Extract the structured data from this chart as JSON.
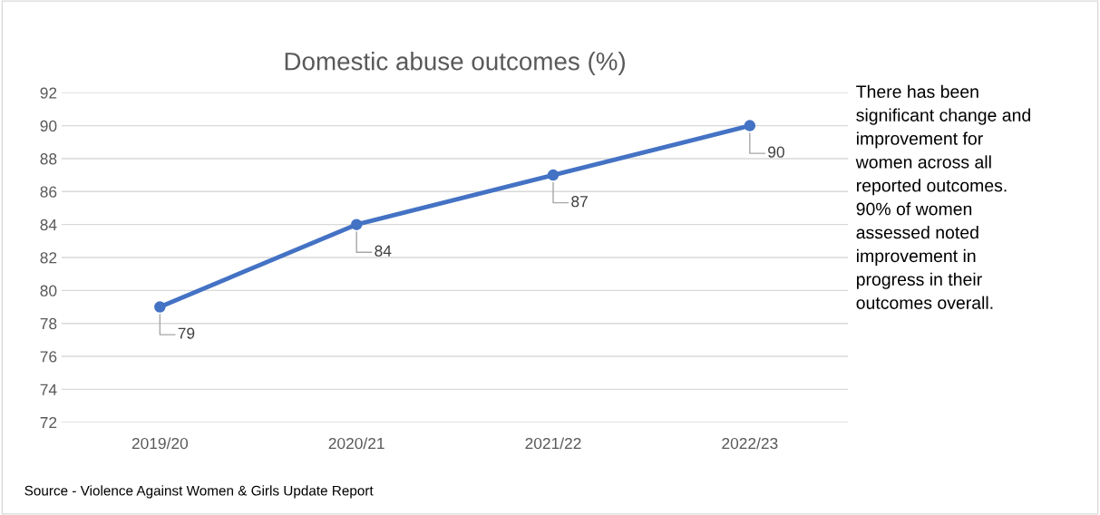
{
  "chart_data": {
    "type": "line",
    "title": "Domestic abuse outcomes (%)",
    "categories": [
      "2019/20",
      "2020/21",
      "2021/22",
      "2022/23"
    ],
    "series": [
      {
        "color": "#4472c4",
        "values": [
          79,
          84,
          87,
          90
        ]
      }
    ],
    "ylim": [
      72,
      92
    ],
    "yticks": [
      72,
      74,
      76,
      78,
      80,
      82,
      84,
      86,
      88,
      90,
      92
    ],
    "grid": "y",
    "marker": "circle",
    "line_style": "solid",
    "data_labels": true,
    "legend": false,
    "annotations": [
      "There has been\nsignificant change and\nimprovement for\nwomen across all\nreported outcomes.\n90% of women\nassessed noted\nimprovement in\nprogress in their\noutcomes overall.",
      "Source - Violence Against Women & Girls Update Report"
    ]
  }
}
